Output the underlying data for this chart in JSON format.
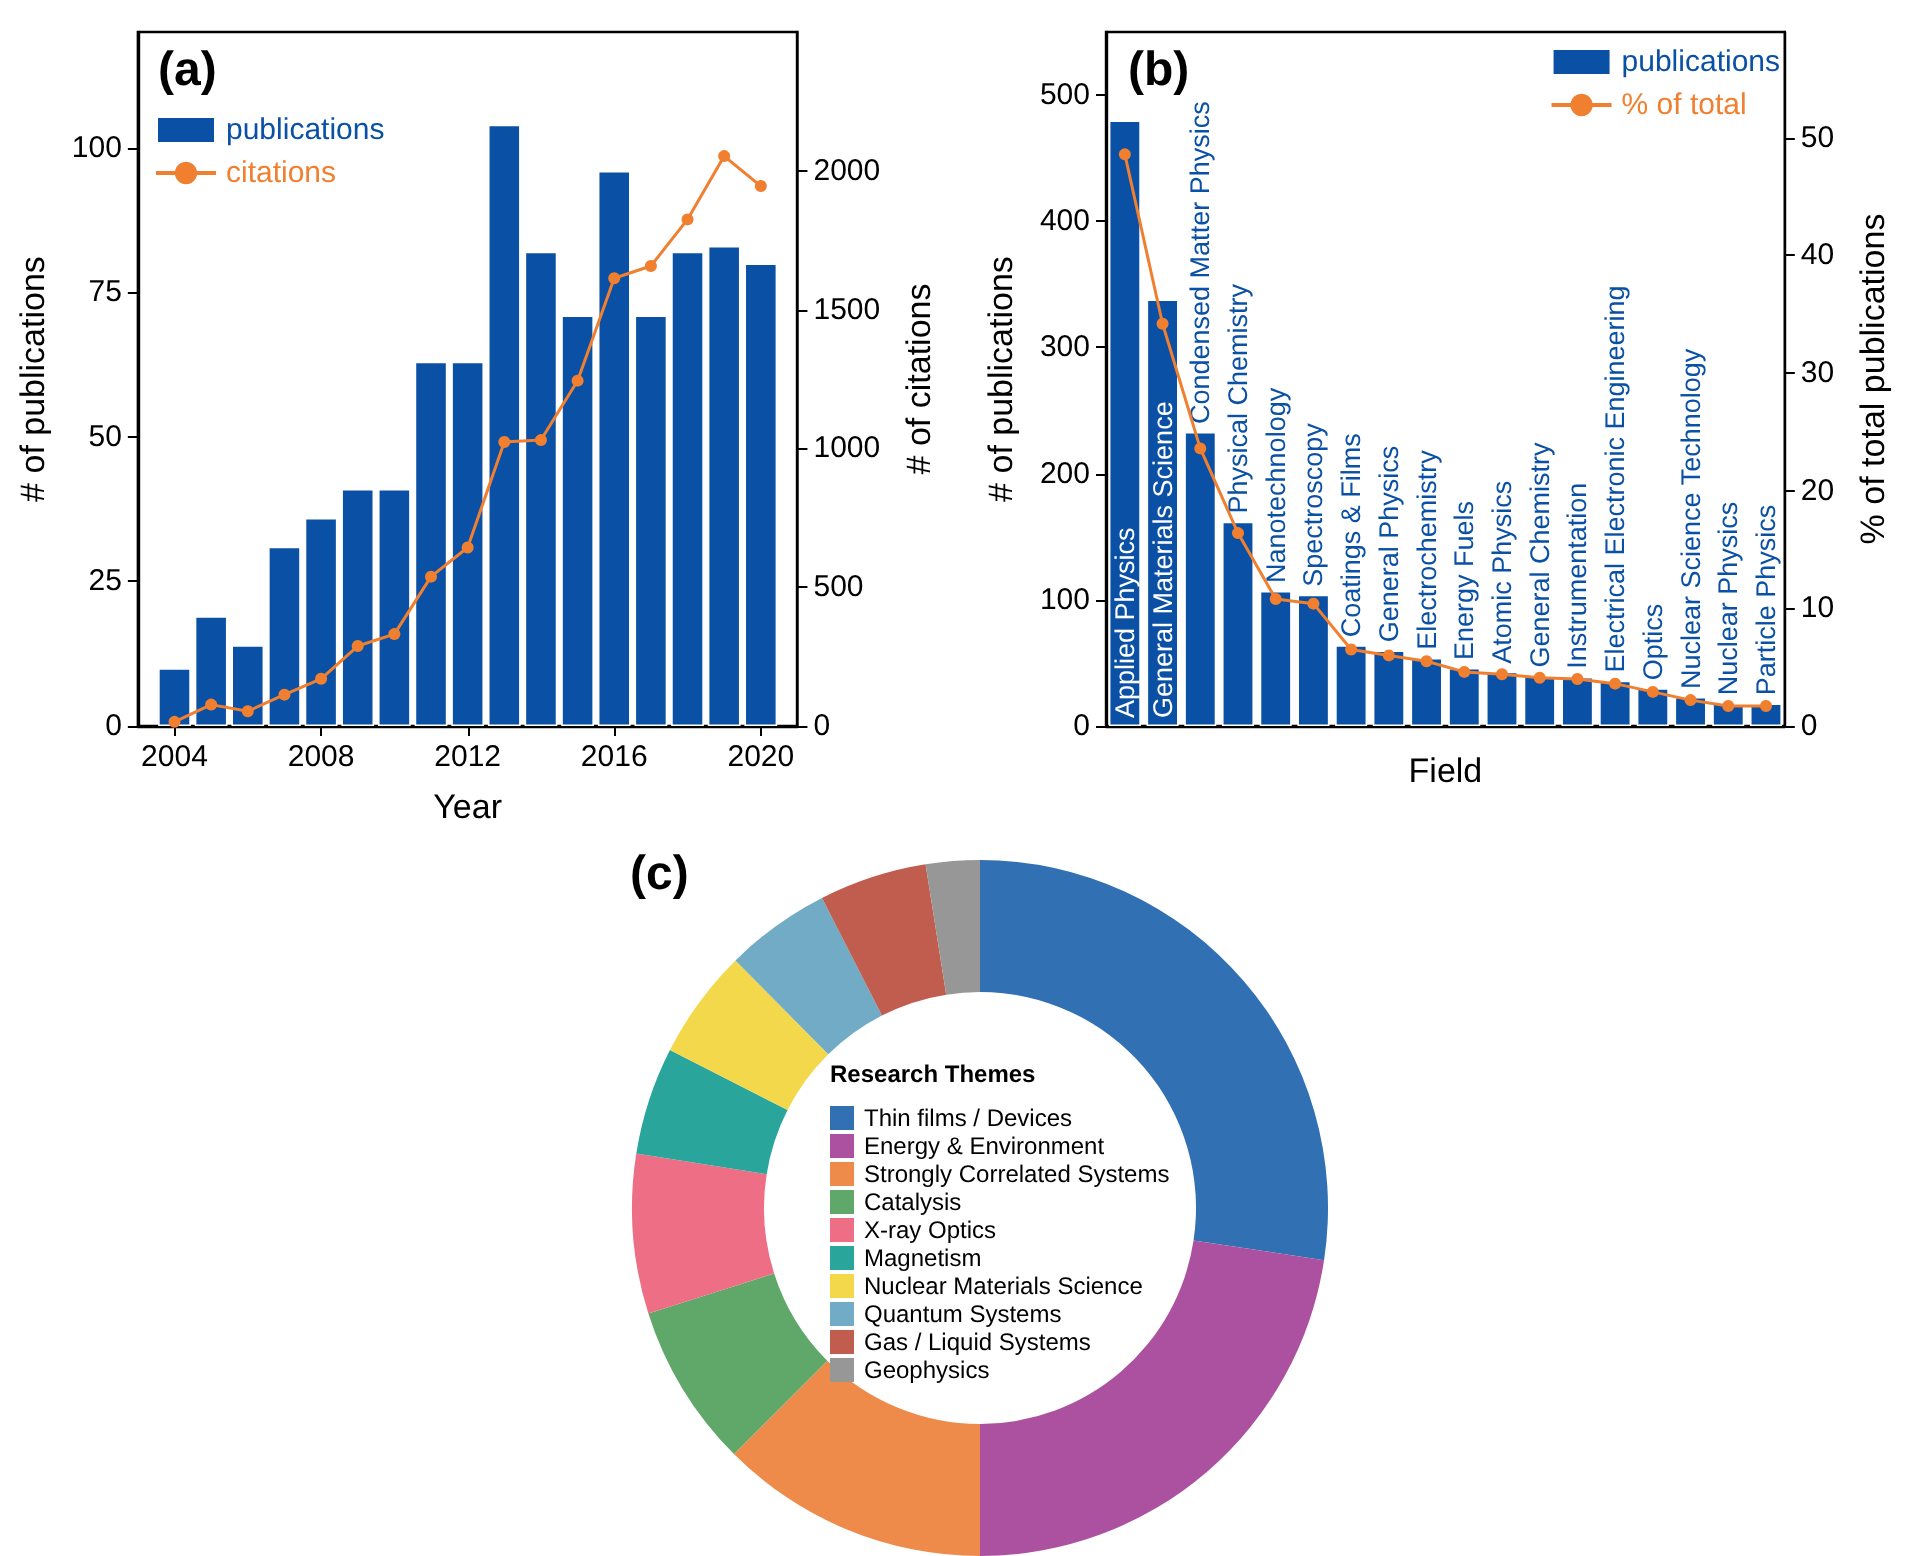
{
  "chart_data": [
    {
      "type": "bar",
      "title": "(a)",
      "xlabel": "Year",
      "ylabel": "# of publications",
      "y2label": "# of citations",
      "x": [
        2004,
        2005,
        2006,
        2007,
        2008,
        2009,
        2010,
        2011,
        2012,
        2013,
        2014,
        2015,
        2016,
        2017,
        2018,
        2019,
        2020
      ],
      "series": [
        {
          "name": "publications",
          "type": "bar",
          "color": "#0a50a5",
          "values": [
            10,
            19,
            14,
            31,
            36,
            41,
            41,
            63,
            63,
            104,
            82,
            71,
            96,
            71,
            82,
            83,
            80
          ]
        },
        {
          "name": "citations",
          "type": "line",
          "axis": "y2",
          "color": "#f07f30",
          "values": [
            15,
            77,
            53,
            113,
            170,
            288,
            331,
            538,
            643,
            1023,
            1030,
            1244,
            1613,
            1657,
            1825,
            2053,
            1945
          ]
        }
      ],
      "xlim": [
        2003,
        2021
      ],
      "xticks": [
        2004,
        2008,
        2012,
        2016,
        2020
      ],
      "ylim": [
        0,
        120
      ],
      "yticks": [
        0,
        25,
        50,
        75,
        100
      ],
      "y2lim": [
        0,
        2500
      ],
      "y2ticks": [
        0,
        500,
        1000,
        1500,
        2000
      ],
      "marker": "circle",
      "grid": false,
      "legend": "top left"
    },
    {
      "type": "bar",
      "title": "(b)",
      "xlabel": "Field",
      "ylabel": "# of publications",
      "y2label": "% of total publications",
      "categories": [
        "Applied Physics",
        "General Materials Science",
        "Condensed Matter Physics",
        "Physical Chemistry",
        "Nanotechnology",
        "Spectroscopy",
        "Coatings & Films",
        "General Physics",
        "Electrochemistry",
        "Energy Fuels",
        "Atomic Physics",
        "General Chemistry",
        "Instrumentation",
        "Electrical Electronic Engineering",
        "Optics",
        "Nuclear Science Technology",
        "Nuclear Physics",
        "Particle Physics"
      ],
      "series": [
        {
          "name": "publications",
          "type": "bar",
          "color": "#0a50a5",
          "values": [
            480,
            338,
            233,
            162,
            107,
            104,
            64,
            60,
            54,
            46,
            43,
            40,
            39,
            36,
            30,
            23,
            18,
            18
          ]
        },
        {
          "name": "% of total",
          "type": "line",
          "axis": "y2",
          "color": "#f07f30",
          "values": [
            48.6,
            34.2,
            23.6,
            16.4,
            10.8,
            10.4,
            6.5,
            6.0,
            5.5,
            4.6,
            4.4,
            4.1,
            4.0,
            3.6,
            2.9,
            2.2,
            1.7,
            1.7
          ]
        }
      ],
      "ylim": [
        0,
        550
      ],
      "yticks": [
        0,
        100,
        200,
        300,
        400,
        500
      ],
      "y2lim": [
        0,
        59
      ],
      "y2ticks": [
        0,
        10,
        20,
        30,
        40,
        50
      ],
      "marker": "circle",
      "grid": false,
      "legend": "top right"
    },
    {
      "type": "donut",
      "title": "(c)",
      "legend_title": "Research Themes",
      "categories": [
        "Thin films / Devices",
        "Energy & Environment",
        "Strongly Correlated Systems",
        "Catalysis",
        "X-ray Optics",
        "Magnetism",
        "Nuclear Materials Science",
        "Quantum Systems",
        "Gas / Liquid Systems",
        "Geophysics"
      ],
      "values": [
        27.4,
        22.6,
        12.5,
        7.6,
        7.4,
        5.0,
        5.1,
        4.9,
        5.0,
        2.5
      ],
      "colors": [
        "#3070b3",
        "#ac519f",
        "#ee8a4a",
        "#5fa86a",
        "#ee6e85",
        "#2aa59b",
        "#f3d84b",
        "#71abc6",
        "#c05d4e",
        "#979797"
      ],
      "legend": "center"
    }
  ]
}
